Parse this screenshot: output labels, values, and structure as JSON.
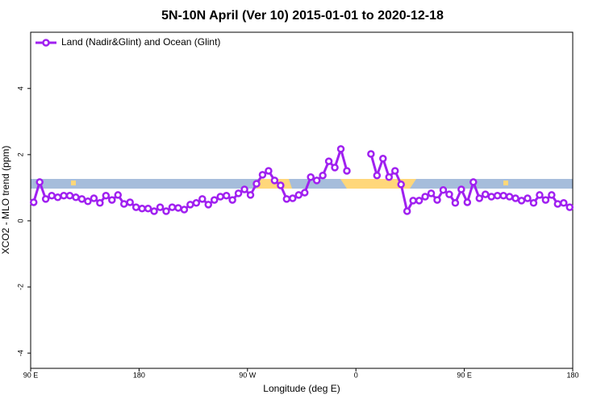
{
  "chart_data": {
    "type": "line",
    "title": "5N-10N April (Ver 10)   2015-01-01 to 2020-12-18",
    "xlabel": "Longitude (deg E)",
    "ylabel": "XCO2 - MLO trend (ppm)",
    "legend": "top-left",
    "xlim": [
      90,
      540
    ],
    "ylim": [
      -4.46,
      5.7
    ],
    "xticks": [
      {
        "value": 90,
        "label": "90 E"
      },
      180,
      {
        "value": 270,
        "label": "90 W"
      },
      {
        "value": 360,
        "label": "0"
      },
      {
        "value": 450,
        "label": "90 E"
      },
      {
        "value": 540,
        "label": "180"
      }
    ],
    "yticks": [
      -4,
      -2,
      0,
      2,
      4
    ],
    "x": [
      92.5,
      97.5,
      102.5,
      107.5,
      112.5,
      117.5,
      122.5,
      127.5,
      132.5,
      137.5,
      142.5,
      147.5,
      152.5,
      157.5,
      162.5,
      167.5,
      172.5,
      177.5,
      182.5,
      187.5,
      192.5,
      197.5,
      202.5,
      207.5,
      212.5,
      217.5,
      222.5,
      227.5,
      232.5,
      237.5,
      242.5,
      247.5,
      252.5,
      257.5,
      262.5,
      267.5,
      272.5,
      277.5,
      282.5,
      287.5,
      292.5,
      297.5,
      302.5,
      307.5,
      312.5,
      317.5,
      322.5,
      327.5,
      332.5,
      337.5,
      342.5,
      347.5,
      352.5,
      357.5,
      362.5,
      367.5,
      372.5,
      377.5,
      382.5,
      387.5,
      392.5,
      397.5,
      402.5,
      407.5,
      412.5,
      417.5,
      422.5,
      427.5,
      432.5,
      437.5,
      442.5,
      447.5,
      452.5,
      457.5,
      462.5,
      467.5,
      472.5,
      477.5,
      482.5,
      487.5,
      492.5,
      497.5,
      502.5,
      507.5,
      512.5,
      517.5,
      522.5,
      527.5,
      532.5,
      537.5
    ],
    "series": [
      {
        "name": "Land (Nadir&Glint) and Ocean (Glint)",
        "color": "#a020f0",
        "values": [
          0.56,
          1.17,
          0.66,
          0.76,
          0.71,
          0.76,
          0.76,
          0.71,
          0.66,
          0.59,
          0.68,
          0.54,
          0.76,
          0.63,
          0.78,
          0.51,
          0.56,
          0.41,
          0.37,
          0.37,
          0.29,
          0.41,
          0.29,
          0.41,
          0.39,
          0.34,
          0.49,
          0.54,
          0.66,
          0.49,
          0.63,
          0.73,
          0.76,
          0.63,
          0.83,
          0.95,
          0.78,
          1.12,
          1.39,
          1.51,
          1.22,
          1.07,
          0.66,
          0.68,
          0.78,
          0.85,
          1.32,
          1.22,
          1.37,
          1.8,
          1.61,
          2.17,
          1.51,
          null,
          null,
          null,
          2.02,
          1.37,
          1.88,
          1.32,
          1.51,
          1.1,
          0.29,
          0.61,
          0.61,
          0.73,
          0.83,
          0.63,
          0.93,
          0.8,
          0.54,
          0.95,
          0.56,
          1.17,
          0.68,
          0.8,
          0.73,
          0.76,
          0.76,
          0.73,
          0.68,
          0.61,
          0.68,
          0.54,
          0.78,
          0.63,
          0.78,
          0.51,
          0.54,
          0.41
        ]
      }
    ]
  }
}
